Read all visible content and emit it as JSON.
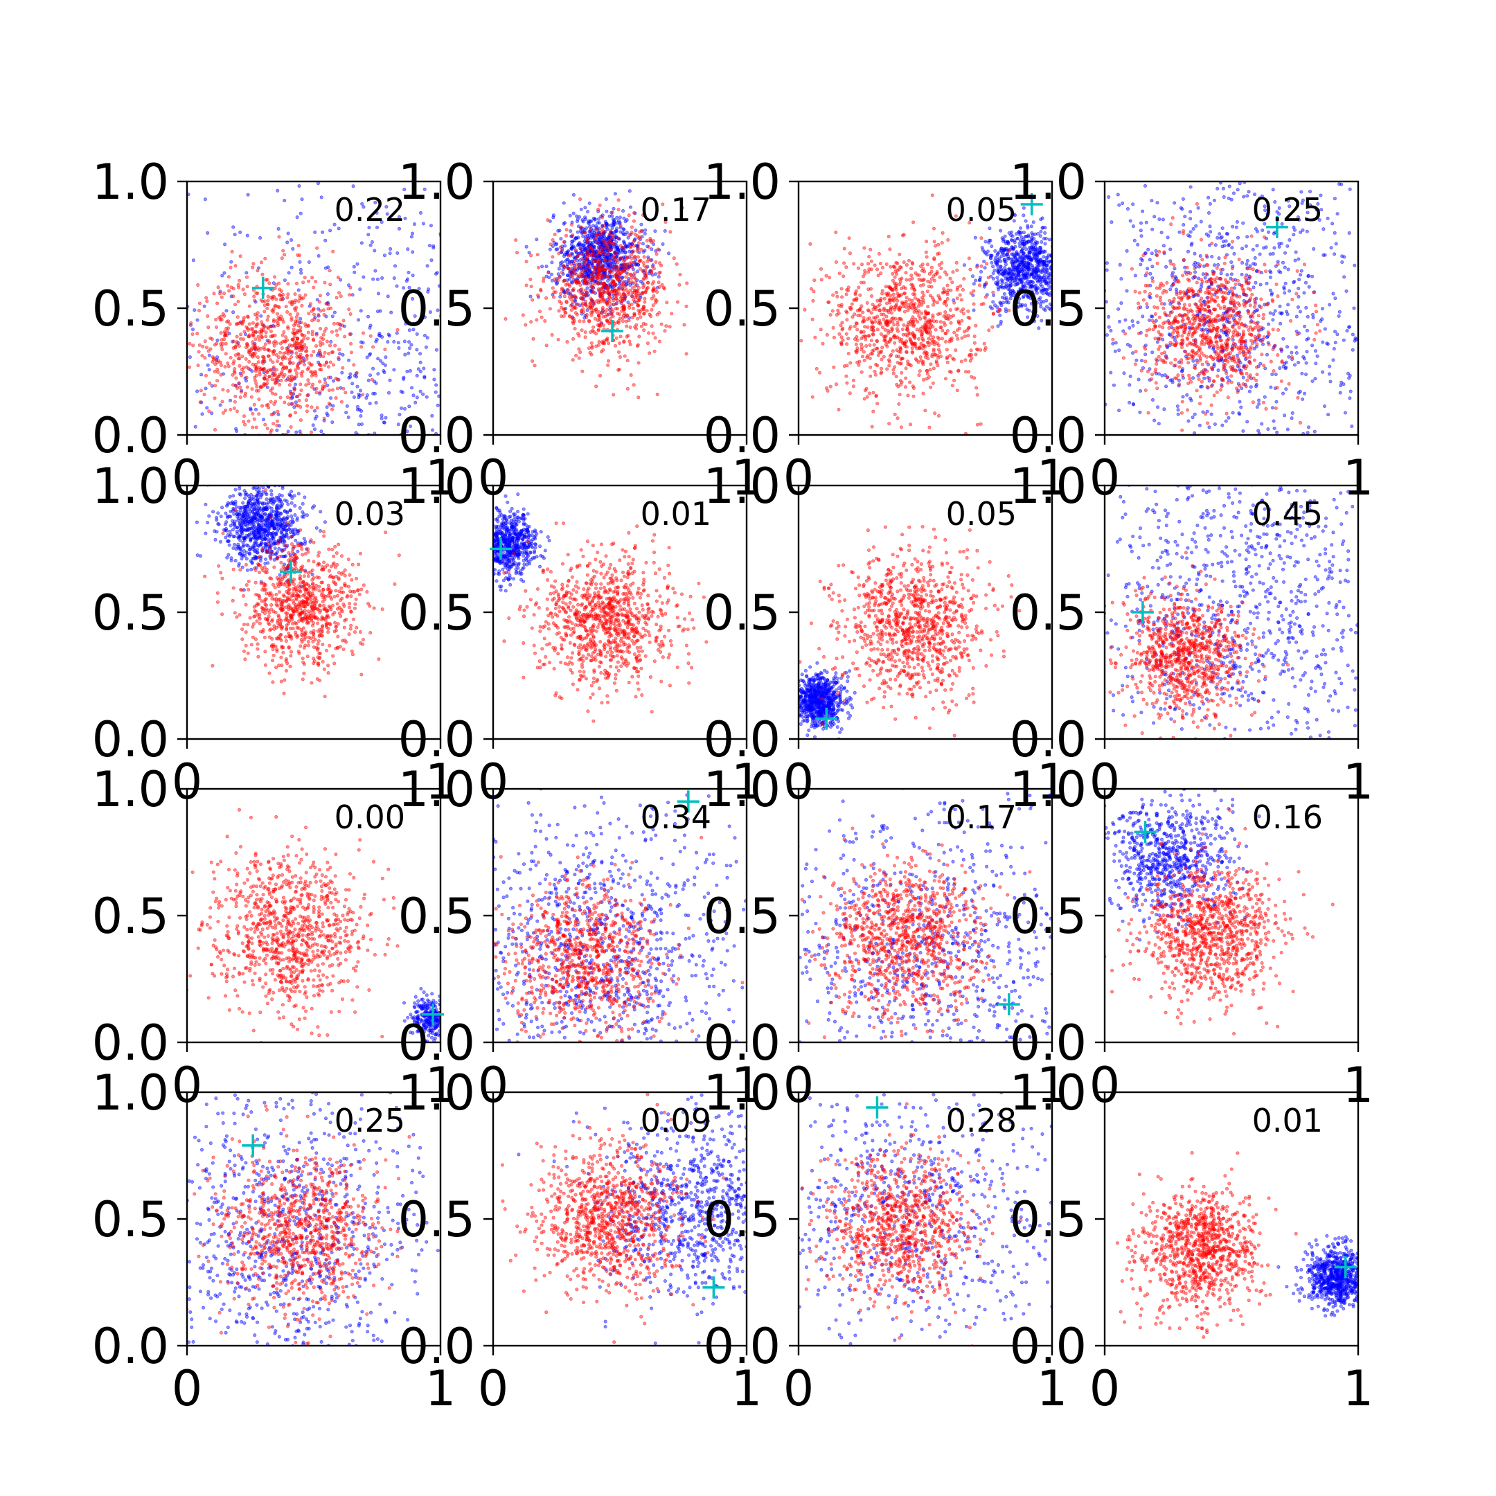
{
  "chart_data": {
    "type": "scatter",
    "grid": false,
    "layout": "4x4 grid of subplots",
    "colors": {
      "cluster_a": "#ff0000",
      "cluster_b": "#0000ff",
      "marker": "#00bfbf",
      "axes": "#000000"
    },
    "marker_symbol": "+",
    "xlim": [
      0,
      1
    ],
    "ylim": [
      0,
      1
    ],
    "x_ticks": [
      "0",
      "1"
    ],
    "y_ticks": [
      "0.0",
      "0.5",
      "1.0"
    ],
    "panels": [
      {
        "value_label": "0.22",
        "marker": [
          0.3,
          0.58
        ],
        "red": {
          "center": [
            0.35,
            0.35
          ],
          "spread": 0.15,
          "count": 800
        },
        "blue": {
          "center": [
            0.75,
            0.15
          ],
          "spread": 0.45,
          "count": 1000
        }
      },
      {
        "value_label": "0.17",
        "marker": [
          0.47,
          0.41
        ],
        "red": {
          "center": [
            0.45,
            0.57
          ],
          "spread": 0.12,
          "count": 800
        },
        "blue": {
          "center": [
            0.42,
            0.7
          ],
          "spread": 0.09,
          "count": 900
        }
      },
      {
        "value_label": "0.05",
        "marker": [
          0.92,
          0.91
        ],
        "red": {
          "center": [
            0.42,
            0.45
          ],
          "spread": 0.15,
          "count": 900
        },
        "blue": {
          "center": [
            0.9,
            0.65
          ],
          "spread": 0.08,
          "count": 800
        }
      },
      {
        "value_label": "0.25",
        "marker": [
          0.68,
          0.82
        ],
        "red": {
          "center": [
            0.42,
            0.42
          ],
          "spread": 0.13,
          "count": 800
        },
        "blue": {
          "center": [
            0.5,
            0.5
          ],
          "spread": 0.3,
          "count": 900
        }
      },
      {
        "value_label": "0.03",
        "marker": [
          0.41,
          0.66
        ],
        "red": {
          "center": [
            0.45,
            0.52
          ],
          "spread": 0.12,
          "count": 800
        },
        "blue": {
          "center": [
            0.3,
            0.85
          ],
          "spread": 0.08,
          "count": 800
        }
      },
      {
        "value_label": "0.01",
        "marker": [
          0.03,
          0.75
        ],
        "red": {
          "center": [
            0.45,
            0.47
          ],
          "spread": 0.13,
          "count": 900
        },
        "blue": {
          "center": [
            0.05,
            0.77
          ],
          "spread": 0.06,
          "count": 700
        }
      },
      {
        "value_label": "0.05",
        "marker": [
          0.11,
          0.08
        ],
        "red": {
          "center": [
            0.45,
            0.45
          ],
          "spread": 0.14,
          "count": 900
        },
        "blue": {
          "center": [
            0.08,
            0.15
          ],
          "spread": 0.05,
          "count": 700
        }
      },
      {
        "value_label": "0.45",
        "marker": [
          0.15,
          0.5
        ],
        "red": {
          "center": [
            0.32,
            0.33
          ],
          "spread": 0.12,
          "count": 800
        },
        "blue": {
          "center": [
            0.55,
            0.5
          ],
          "spread": 0.35,
          "count": 1000
        }
      },
      {
        "value_label": "0.00",
        "marker": [
          0.97,
          0.11
        ],
        "red": {
          "center": [
            0.4,
            0.43
          ],
          "spread": 0.15,
          "count": 900
        },
        "blue": {
          "center": [
            0.97,
            0.1
          ],
          "spread": 0.04,
          "count": 300
        }
      },
      {
        "value_label": "0.34",
        "marker": [
          0.77,
          0.95
        ],
        "red": {
          "center": [
            0.35,
            0.33
          ],
          "spread": 0.15,
          "count": 800
        },
        "blue": {
          "center": [
            0.45,
            0.35
          ],
          "spread": 0.3,
          "count": 1000
        }
      },
      {
        "value_label": "0.17",
        "marker": [
          0.83,
          0.15
        ],
        "red": {
          "center": [
            0.42,
            0.4
          ],
          "spread": 0.15,
          "count": 900
        },
        "blue": {
          "center": [
            0.5,
            0.35
          ],
          "spread": 0.35,
          "count": 900
        }
      },
      {
        "value_label": "0.16",
        "marker": [
          0.16,
          0.83
        ],
        "red": {
          "center": [
            0.42,
            0.43
          ],
          "spread": 0.13,
          "count": 900
        },
        "blue": {
          "center": [
            0.25,
            0.72
          ],
          "spread": 0.12,
          "count": 700
        }
      },
      {
        "value_label": "0.25",
        "marker": [
          0.26,
          0.79
        ],
        "red": {
          "center": [
            0.45,
            0.45
          ],
          "spread": 0.15,
          "count": 800
        },
        "blue": {
          "center": [
            0.4,
            0.45
          ],
          "spread": 0.3,
          "count": 900
        }
      },
      {
        "value_label": "0.09",
        "marker": [
          0.87,
          0.23
        ],
        "red": {
          "center": [
            0.45,
            0.5
          ],
          "spread": 0.14,
          "count": 900
        },
        "blue": {
          "center": [
            0.8,
            0.55
          ],
          "spread": 0.18,
          "count": 800
        }
      },
      {
        "value_label": "0.28",
        "marker": [
          0.31,
          0.94
        ],
        "red": {
          "center": [
            0.4,
            0.45
          ],
          "spread": 0.14,
          "count": 800
        },
        "blue": {
          "center": [
            0.45,
            0.55
          ],
          "spread": 0.3,
          "count": 700
        }
      },
      {
        "value_label": "0.01",
        "marker": [
          0.95,
          0.31
        ],
        "red": {
          "center": [
            0.38,
            0.38
          ],
          "spread": 0.12,
          "count": 900
        },
        "blue": {
          "center": [
            0.92,
            0.27
          ],
          "spread": 0.06,
          "count": 700
        }
      }
    ]
  }
}
